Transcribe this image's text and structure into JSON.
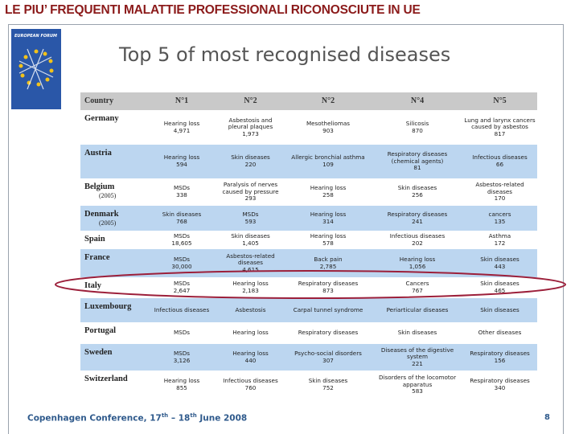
{
  "header": {
    "title": "LE PIU’ FREQUENTI MALATTIE PROFESSIONALI RICONOSCIUTE IN UE"
  },
  "logo": {
    "text": "EUROPEAN FORUM"
  },
  "main_title": "Top 5 of most recognised diseases",
  "table": {
    "header": [
      "Country",
      "N°1",
      "N°2",
      "N°2",
      "N°4",
      "N°5"
    ],
    "rows": [
      {
        "country": "Germany",
        "cells": [
          {
            "name": "Hearing loss",
            "count": "4,971"
          },
          {
            "name": "Asbestosis and pleural plaques",
            "count": "1,973"
          },
          {
            "name": "Mesotheliomas",
            "count": "903"
          },
          {
            "name": "Silicosis",
            "count": "870"
          },
          {
            "name": "Lung and larynx cancers caused by asbestos",
            "count": "817"
          }
        ]
      },
      {
        "country": "Austria",
        "cells": [
          {
            "name": "Hearing loss",
            "count": "594"
          },
          {
            "name": "Skin diseases",
            "count": "220"
          },
          {
            "name": "Allergic bronchial asthma",
            "count": "109"
          },
          {
            "name": "Respiratory diseases (chemical agents)",
            "count": "81"
          },
          {
            "name": "Infectious diseases",
            "count": "66"
          }
        ]
      },
      {
        "country": "Belgium",
        "note": "(2005)",
        "cells": [
          {
            "name": "MSDs",
            "count": "338"
          },
          {
            "name": "Paralysis of nerves caused by pressure",
            "count": "293"
          },
          {
            "name": "Hearing loss",
            "count": "258"
          },
          {
            "name": "Skin diseases",
            "count": "256"
          },
          {
            "name": "Asbestos-related diseases",
            "count": "170"
          }
        ]
      },
      {
        "country": "Denmark",
        "note": "(2005)",
        "cells": [
          {
            "name": "Skin diseases",
            "count": "768"
          },
          {
            "name": "MSDs",
            "count": "593"
          },
          {
            "name": "Hearing loss",
            "count": "314"
          },
          {
            "name": "Respiratory diseases",
            "count": "241"
          },
          {
            "name": "cancers",
            "count": "135"
          }
        ]
      },
      {
        "country": "Spain",
        "cells": [
          {
            "name": "MSDs",
            "count": "18,605"
          },
          {
            "name": "Skin diseases",
            "count": "1,405"
          },
          {
            "name": "Hearing loss",
            "count": "578"
          },
          {
            "name": "Infectious diseases",
            "count": "202"
          },
          {
            "name": "Asthma",
            "count": "172"
          }
        ]
      },
      {
        "country": "France",
        "cells": [
          {
            "name": "MSDs",
            "count": "30,000"
          },
          {
            "name": "Asbestos-related diseases",
            "count": "4,615"
          },
          {
            "name": "Back pain",
            "count": "2,785"
          },
          {
            "name": "Hearing loss",
            "count": "1,056"
          },
          {
            "name": "Skin diseases",
            "count": "443"
          }
        ]
      },
      {
        "country": "Italy",
        "cells": [
          {
            "name": "MSDs",
            "count": "2,647"
          },
          {
            "name": "Hearing loss",
            "count": "2,183"
          },
          {
            "name": "Respiratory diseases",
            "count": "873"
          },
          {
            "name": "Cancers",
            "count": "767"
          },
          {
            "name": "Skin diseases",
            "count": "465"
          }
        ]
      },
      {
        "country": "Luxembourg",
        "cells": [
          {
            "name": "Infectious diseases"
          },
          {
            "name": "Asbestosis"
          },
          {
            "name": "Carpal tunnel syndrome"
          },
          {
            "name": "Periarticular diseases"
          },
          {
            "name": "Skin diseases"
          }
        ]
      },
      {
        "country": "Portugal",
        "cells": [
          {
            "name": "MSDs"
          },
          {
            "name": "Hearing loss"
          },
          {
            "name": "Respiratory diseases"
          },
          {
            "name": "Skin diseases"
          },
          {
            "name": "Other diseases"
          }
        ]
      },
      {
        "country": "Sweden",
        "cells": [
          {
            "name": "MSDs",
            "count": "3,126"
          },
          {
            "name": "Hearing loss",
            "count": "440"
          },
          {
            "name": "Psycho-social disorders",
            "count": "307"
          },
          {
            "name": "Diseases of the digestive system",
            "count": "221"
          },
          {
            "name": "Respiratory diseases",
            "count": "156"
          }
        ]
      },
      {
        "country": "Switzerland",
        "cells": [
          {
            "name": "Hearing loss",
            "count": "855"
          },
          {
            "name": "Infectious diseases",
            "count": "760"
          },
          {
            "name": "Skin diseases",
            "count": "752"
          },
          {
            "name": "Disorders of the locomotor apparatus",
            "count": "583"
          },
          {
            "name": "Respiratory diseases",
            "count": "340"
          }
        ]
      }
    ]
  },
  "footer": {
    "parts": [
      "Copenhagen Conference, 17",
      "th",
      " – 18",
      "th",
      " June 2008"
    ],
    "page": "8"
  }
}
